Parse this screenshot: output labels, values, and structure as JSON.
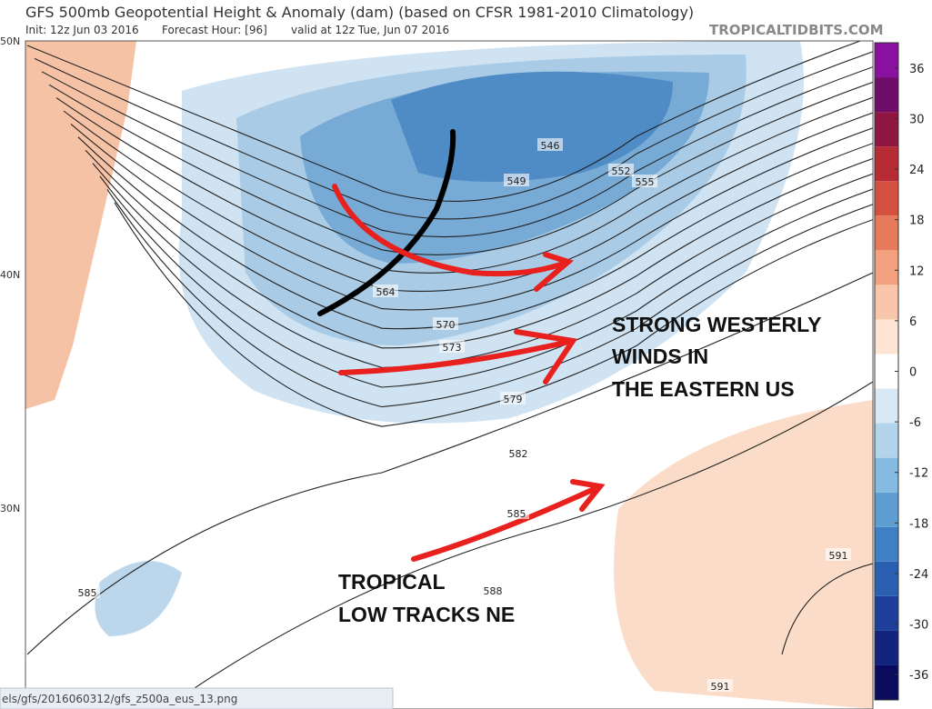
{
  "header": {
    "title": "GFS 500mb Geopotential Height & Anomaly (dam) (based on CFSR 1981-2010 Climatology)",
    "init": "Init: 12z Jun 03 2016",
    "forecast_hour": "Forecast Hour: [96]",
    "valid": "valid at 12z Tue, Jun 07 2016",
    "site": "TROPICALTIDBITS.COM"
  },
  "map": {
    "lat_labels": [
      "50N",
      "40N",
      "30N"
    ],
    "contour_labels": [
      546,
      549,
      552,
      555,
      564,
      570,
      573,
      579,
      582,
      585,
      585,
      588,
      591,
      591
    ]
  },
  "colorbar": {
    "ticks": [
      36,
      30,
      24,
      18,
      12,
      6,
      0,
      -6,
      -12,
      -18,
      -24,
      -30,
      -36
    ],
    "range": [
      -39,
      39
    ]
  },
  "annotations": [
    "STRONG WESTERLY",
    "WINDS IN",
    "THE EASTERN US",
    "TROPICAL",
    "LOW TRACKS NE"
  ],
  "statusbar": {
    "url": "els/gfs/2016060312/gfs_z500a_eus_13.png"
  }
}
